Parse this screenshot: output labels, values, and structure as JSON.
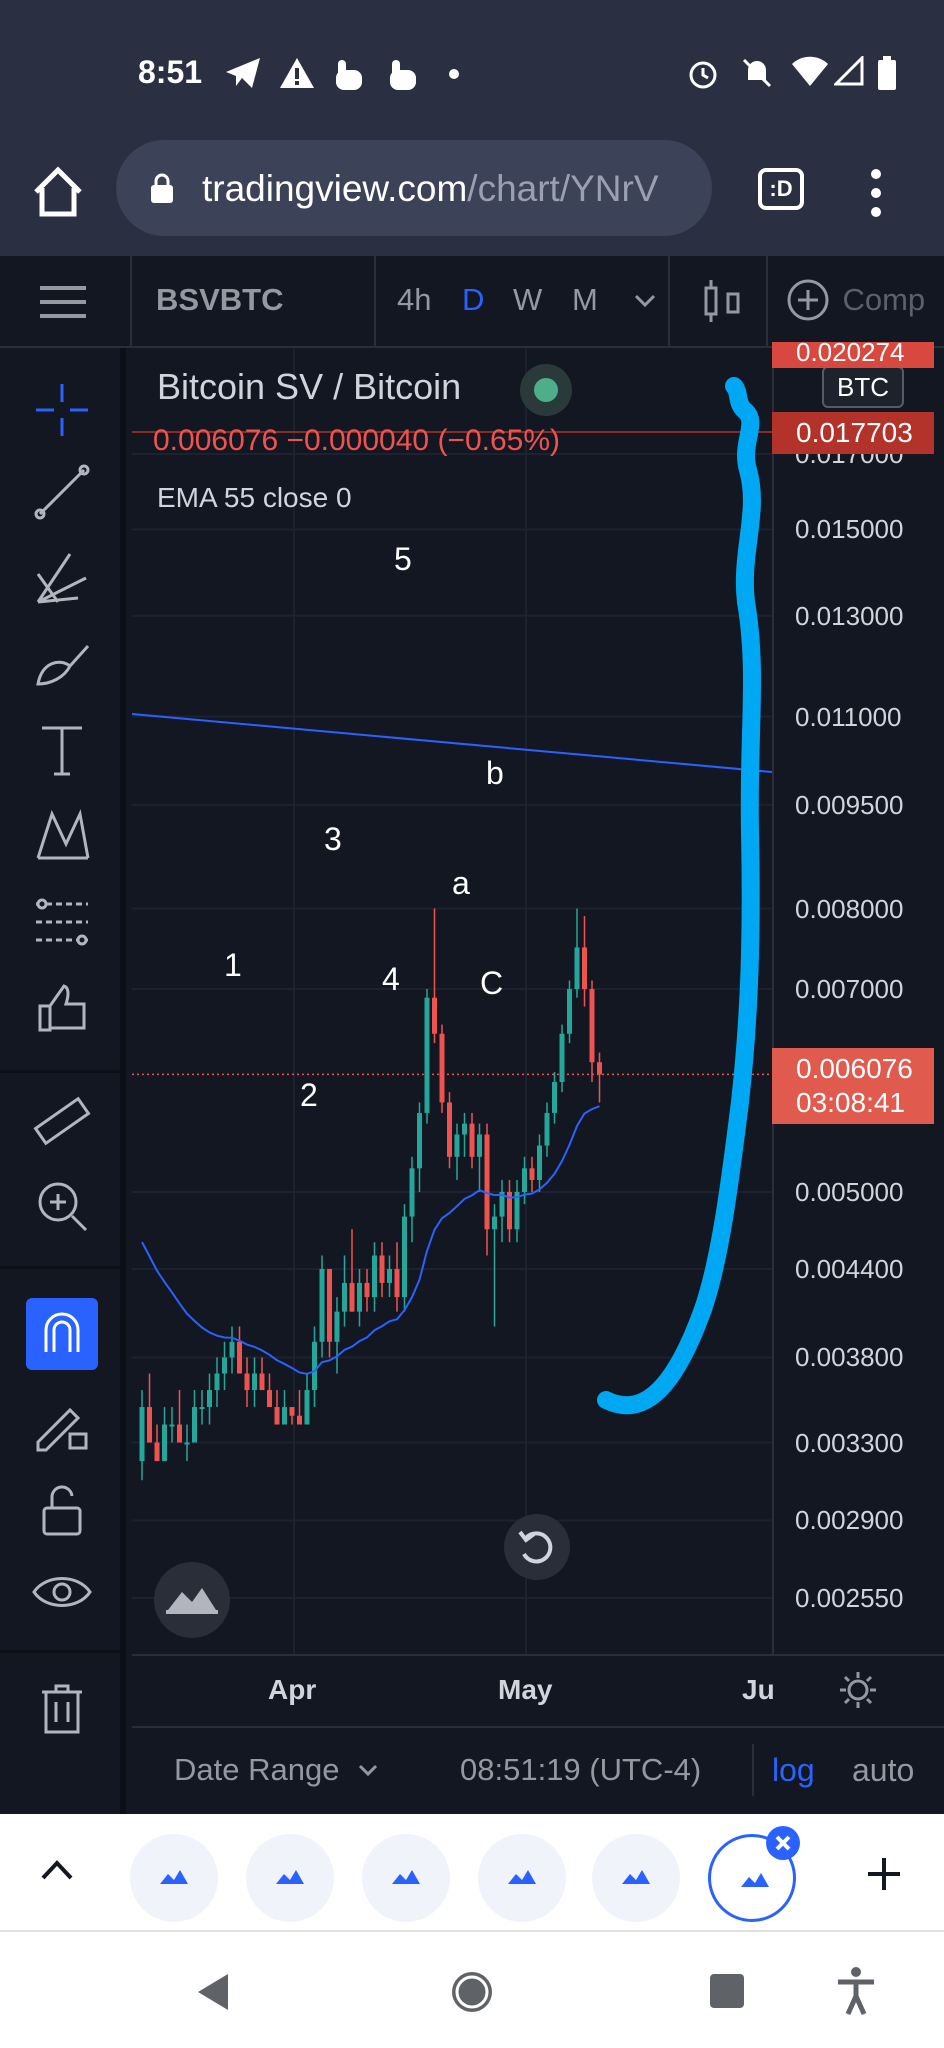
{
  "status_bar": {
    "time": "8:51"
  },
  "browser": {
    "url_host": "tradingview.com",
    "url_path": "/chart/YNrV",
    "tabs_label": ":D"
  },
  "toolbar": {
    "menu_icon": "hamburger-icon",
    "symbol": "BSVBTC",
    "timeframes": [
      "4h",
      "D",
      "W",
      "M"
    ],
    "active_timeframe": "D",
    "compare_label": "Comp"
  },
  "legend": {
    "title": "Bitcoin SV / Bitcoin",
    "price_change": "0.006076  −0.000040 (−0.65%)",
    "indicator": "EMA  55 close 0"
  },
  "chart_data": {
    "type": "candlestick",
    "scale": "log",
    "y_ticks": [
      "0.017000",
      "0.015000",
      "0.013000",
      "0.011000",
      "0.009500",
      "0.008000",
      "0.007000",
      "0.005000",
      "0.004400",
      "0.003800",
      "0.003300",
      "0.002900",
      "0.002550"
    ],
    "y_tick_values": [
      0.017,
      0.015,
      0.013,
      0.011,
      0.0095,
      0.008,
      0.007,
      0.005,
      0.0044,
      0.0038,
      0.0033,
      0.0029,
      0.00255
    ],
    "x_labels": [
      "Apr",
      "May",
      "Ju"
    ],
    "currency_badge": "BTC",
    "price_tags": [
      {
        "label": "0.020274",
        "value": 0.020274
      },
      {
        "label": "0.017703",
        "value": 0.017703
      },
      {
        "label": "0.006076",
        "countdown": "03:08:41",
        "value": 0.006076
      }
    ],
    "wave_labels": [
      "1",
      "2",
      "3",
      "4",
      "5",
      "a",
      "b",
      "C"
    ],
    "ema_period": 55,
    "colors": {
      "up": "#26a69a",
      "down": "#ef5350",
      "ema": "#2962ff",
      "annotation": "#00a8f3"
    }
  },
  "bottom": {
    "date_range": "Date Range",
    "clock": "08:51:19 (UTC-4)",
    "log": "log",
    "auto": "auto"
  }
}
